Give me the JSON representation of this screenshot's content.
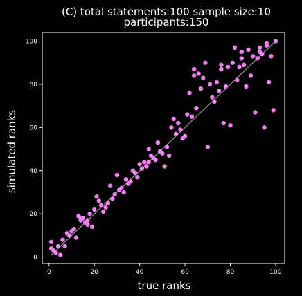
{
  "chart_data": {
    "type": "scatter",
    "title_line1": "(C)    total statements:100 sample size:10",
    "title_line2": "participants:150",
    "xlabel": "true ranks",
    "ylabel": "simulated ranks",
    "xlim": [
      -3,
      104
    ],
    "ylim": [
      -3,
      104
    ],
    "xticks": [
      0,
      20,
      40,
      60,
      80,
      100
    ],
    "yticks": [
      0,
      20,
      40,
      60,
      80,
      100
    ],
    "identity_line": [
      [
        1,
        1
      ],
      [
        100,
        100
      ]
    ],
    "colors": {
      "background": "#000000",
      "point": "#ee82ee",
      "line": "#999999",
      "frame": "#ffffff"
    },
    "points": [
      [
        1,
        7
      ],
      [
        1,
        4
      ],
      [
        2,
        3
      ],
      [
        3,
        2
      ],
      [
        4,
        5
      ],
      [
        5,
        1
      ],
      [
        6,
        8
      ],
      [
        7,
        5
      ],
      [
        8,
        11
      ],
      [
        9,
        10
      ],
      [
        10,
        12
      ],
      [
        11,
        13
      ],
      [
        12,
        9
      ],
      [
        13,
        19
      ],
      [
        14,
        17
      ],
      [
        15,
        18
      ],
      [
        16,
        16
      ],
      [
        17,
        15
      ],
      [
        18,
        20
      ],
      [
        19,
        14
      ],
      [
        20,
        22
      ],
      [
        21,
        28
      ],
      [
        22,
        26
      ],
      [
        23,
        24
      ],
      [
        24,
        21
      ],
      [
        25,
        23
      ],
      [
        26,
        25
      ],
      [
        27,
        33
      ],
      [
        28,
        27
      ],
      [
        29,
        29
      ],
      [
        30,
        38
      ],
      [
        31,
        31
      ],
      [
        32,
        32
      ],
      [
        33,
        30
      ],
      [
        34,
        36
      ],
      [
        35,
        34
      ],
      [
        36,
        35
      ],
      [
        37,
        40
      ],
      [
        38,
        39
      ],
      [
        39,
        37
      ],
      [
        40,
        43
      ],
      [
        41,
        41
      ],
      [
        42,
        44
      ],
      [
        43,
        42
      ],
      [
        44,
        50
      ],
      [
        45,
        47
      ],
      [
        46,
        46
      ],
      [
        47,
        45
      ],
      [
        48,
        53
      ],
      [
        49,
        49
      ],
      [
        50,
        48
      ],
      [
        51,
        42
      ],
      [
        52,
        51
      ],
      [
        53,
        47
      ],
      [
        54,
        60
      ],
      [
        55,
        64
      ],
      [
        56,
        57
      ],
      [
        57,
        62
      ],
      [
        58,
        59
      ],
      [
        59,
        55
      ],
      [
        60,
        56
      ],
      [
        61,
        66
      ],
      [
        62,
        76
      ],
      [
        63,
        65
      ],
      [
        64,
        87
      ],
      [
        65,
        69
      ],
      [
        66,
        85
      ],
      [
        67,
        78
      ],
      [
        68,
        83
      ],
      [
        69,
        90
      ],
      [
        70,
        51
      ],
      [
        71,
        80
      ],
      [
        72,
        74
      ],
      [
        73,
        72
      ],
      [
        74,
        81
      ],
      [
        75,
        77
      ],
      [
        76,
        87
      ],
      [
        77,
        62
      ],
      [
        78,
        79
      ],
      [
        79,
        88
      ],
      [
        80,
        61
      ],
      [
        81,
        90
      ],
      [
        82,
        97
      ],
      [
        83,
        82
      ],
      [
        84,
        88
      ],
      [
        85,
        95
      ],
      [
        86,
        89
      ],
      [
        87,
        79
      ],
      [
        88,
        96
      ],
      [
        89,
        84
      ],
      [
        90,
        93
      ],
      [
        91,
        67
      ],
      [
        92,
        92
      ],
      [
        93,
        97
      ],
      [
        94,
        94
      ],
      [
        95,
        60
      ],
      [
        96,
        98
      ],
      [
        97,
        81
      ],
      [
        98,
        93
      ],
      [
        99,
        68
      ],
      [
        100,
        100
      ],
      [
        93,
        95
      ],
      [
        85,
        92
      ],
      [
        76,
        89
      ],
      [
        64,
        84
      ],
      [
        44,
        44
      ],
      [
        26,
        25
      ],
      [
        17,
        17
      ],
      [
        14,
        18
      ],
      [
        96,
        99
      ]
    ]
  }
}
